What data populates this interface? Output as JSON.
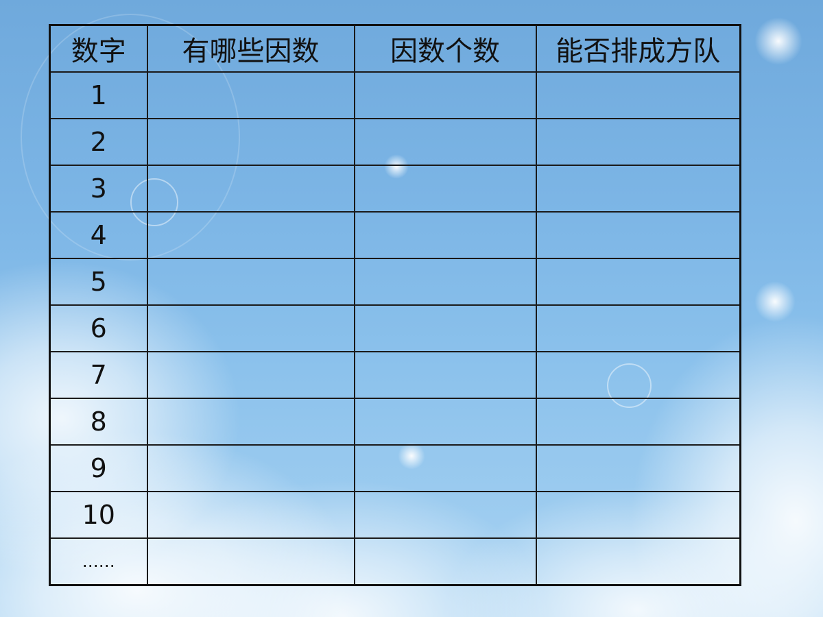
{
  "table": {
    "headers": [
      "数字",
      "有哪些因数",
      "因数个数",
      "能否排成方队"
    ],
    "rows": [
      "1",
      "2",
      "3",
      "4",
      "5",
      "6",
      "7",
      "8",
      "9",
      "10",
      "……"
    ]
  }
}
